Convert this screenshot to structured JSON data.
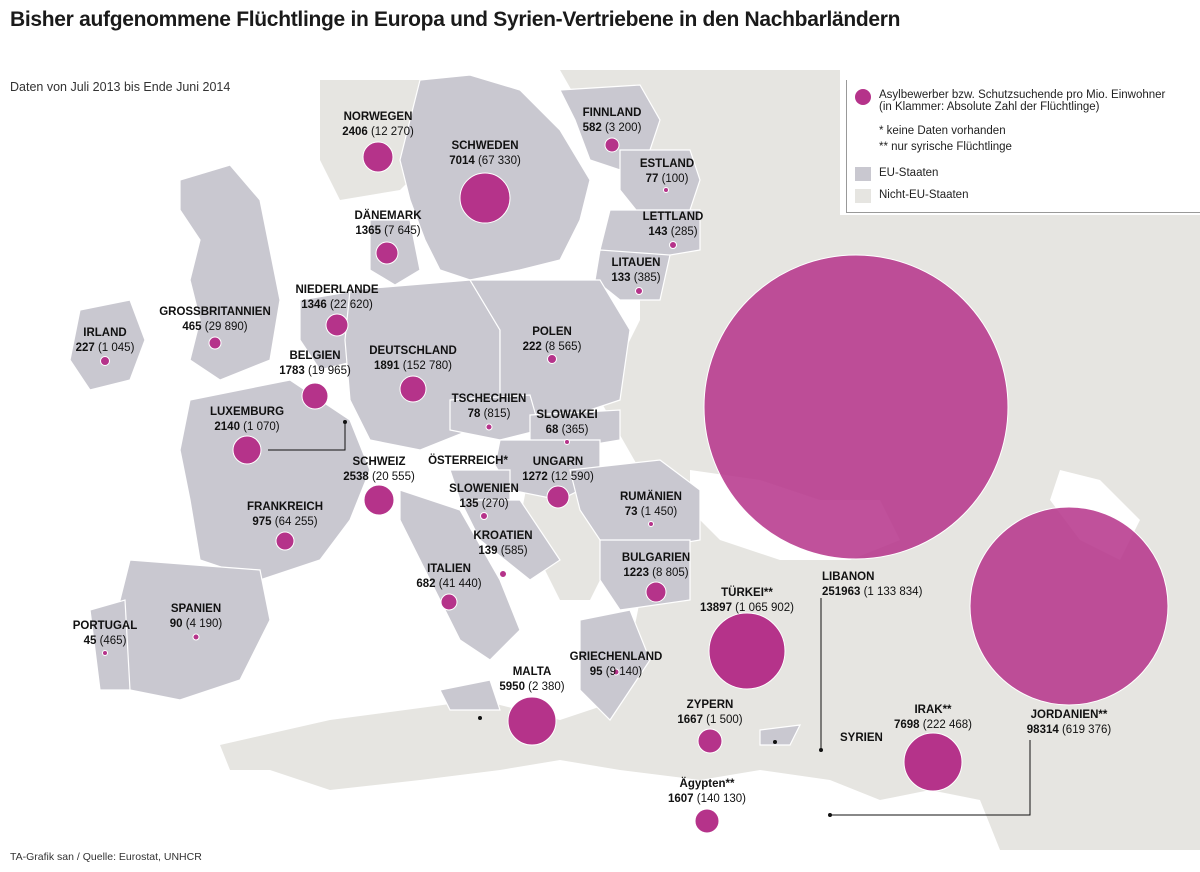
{
  "title": "Bisher aufgenommene Flüchtlinge in Europa und Syrien-Vertriebene in den Nachbarländern",
  "subtitle": "Daten von Juli 2013 bis Ende Juni 2014",
  "source": "TA-Grafik san / Quelle: Eurostat, UNHCR",
  "legend": {
    "bubble": "Asylbewerber bzw. Schutzsuchende pro Mio. Einwohner",
    "bubble_sub": "(in Klammer: Absolute Zahl der Flüchtlinge)",
    "note1": "*  keine Daten vorhanden",
    "note2": "** nur syrische Flüchtlinge",
    "eu": "EU-Staaten",
    "non_eu": "Nicht-EU-Staaten"
  },
  "colors": {
    "bubble": "#b5338a",
    "eu": "#c9c8d0",
    "non_eu": "#e6e5e1",
    "sea": "#ffffff",
    "border": "#ffffff"
  },
  "syrien_label": "SYRIEN",
  "countries": [
    {
      "id": "norwegen",
      "name": "NORWEGEN",
      "per_mio": "2406",
      "abs": "(12 270)"
    },
    {
      "id": "schweden",
      "name": "SCHWEDEN",
      "per_mio": "7014",
      "abs": "(67 330)"
    },
    {
      "id": "finnland",
      "name": "FINNLAND",
      "per_mio": "582",
      "abs": "(3 200)"
    },
    {
      "id": "estland",
      "name": "ESTLAND",
      "per_mio": "77",
      "abs": "(100)"
    },
    {
      "id": "lettland",
      "name": "LETTLAND",
      "per_mio": "143",
      "abs": "(285)"
    },
    {
      "id": "litauen",
      "name": "LITAUEN",
      "per_mio": "133",
      "abs": "(385)"
    },
    {
      "id": "daenemark",
      "name": "DÄNEMARK",
      "per_mio": "1365",
      "abs": "(7 645)"
    },
    {
      "id": "niederlande",
      "name": "NIEDERLANDE",
      "per_mio": "1346",
      "abs": "(22 620)"
    },
    {
      "id": "grossbritannien",
      "name": "GROSSBRITANNIEN",
      "per_mio": "465",
      "abs": "(29 890)"
    },
    {
      "id": "irland",
      "name": "IRLAND",
      "per_mio": "227",
      "abs": "(1 045)"
    },
    {
      "id": "belgien",
      "name": "BELGIEN",
      "per_mio": "1783",
      "abs": "(19 965)"
    },
    {
      "id": "deutschland",
      "name": "DEUTSCHLAND",
      "per_mio": "1891",
      "abs": "(152 780)"
    },
    {
      "id": "polen",
      "name": "POLEN",
      "per_mio": "222",
      "abs": "(8 565)"
    },
    {
      "id": "tschechien",
      "name": "TSCHECHIEN",
      "per_mio": "78",
      "abs": "(815)"
    },
    {
      "id": "slowakei",
      "name": "SLOWAKEI",
      "per_mio": "68",
      "abs": "(365)"
    },
    {
      "id": "luxemburg",
      "name": "LUXEMBURG",
      "per_mio": "2140",
      "abs": "(1 070)"
    },
    {
      "id": "schweiz",
      "name": "SCHWEIZ",
      "per_mio": "2538",
      "abs": "(20 555)"
    },
    {
      "id": "oesterreich",
      "name": "ÖSTERREICH*",
      "per_mio": "",
      "abs": ""
    },
    {
      "id": "ungarn",
      "name": "UNGARN",
      "per_mio": "1272",
      "abs": "(12 590)"
    },
    {
      "id": "slowenien",
      "name": "SLOWENIEN",
      "per_mio": "135",
      "abs": "(270)"
    },
    {
      "id": "kroatien",
      "name": "KROATIEN",
      "per_mio": "139",
      "abs": "(585)"
    },
    {
      "id": "rumaenien",
      "name": "RUMÄNIEN",
      "per_mio": "73",
      "abs": "(1 450)"
    },
    {
      "id": "frankreich",
      "name": "FRANKREICH",
      "per_mio": "975",
      "abs": "(64 255)"
    },
    {
      "id": "italien",
      "name": "ITALIEN",
      "per_mio": "682",
      "abs": "(41 440)"
    },
    {
      "id": "bulgarien",
      "name": "BULGARIEN",
      "per_mio": "1223",
      "abs": "(8 805)"
    },
    {
      "id": "portugal",
      "name": "PORTUGAL",
      "per_mio": "45",
      "abs": "(465)"
    },
    {
      "id": "spanien",
      "name": "SPANIEN",
      "per_mio": "90",
      "abs": "(4 190)"
    },
    {
      "id": "tuerkei",
      "name": "TÜRKEI**",
      "per_mio": "13897",
      "abs": "(1 065 902)"
    },
    {
      "id": "libanon",
      "name": "LIBANON",
      "per_mio": "251963",
      "abs": "(1 133 834)"
    },
    {
      "id": "griechenland",
      "name": "GRIECHENLAND",
      "per_mio": "95",
      "abs": "(9 140)"
    },
    {
      "id": "malta",
      "name": "MALTA",
      "per_mio": "5950",
      "abs": "(2 380)"
    },
    {
      "id": "zypern",
      "name": "ZYPERN",
      "per_mio": "1667",
      "abs": "(1 500)"
    },
    {
      "id": "irak",
      "name": "IRAK**",
      "per_mio": "7698",
      "abs": "(222 468)"
    },
    {
      "id": "jordanien",
      "name": "JORDANIEN**",
      "per_mio": "98314",
      "abs": "(619 376)"
    },
    {
      "id": "aegypten",
      "name": "Ägypten**",
      "per_mio": "1607",
      "abs": "(140 130)"
    }
  ]
}
